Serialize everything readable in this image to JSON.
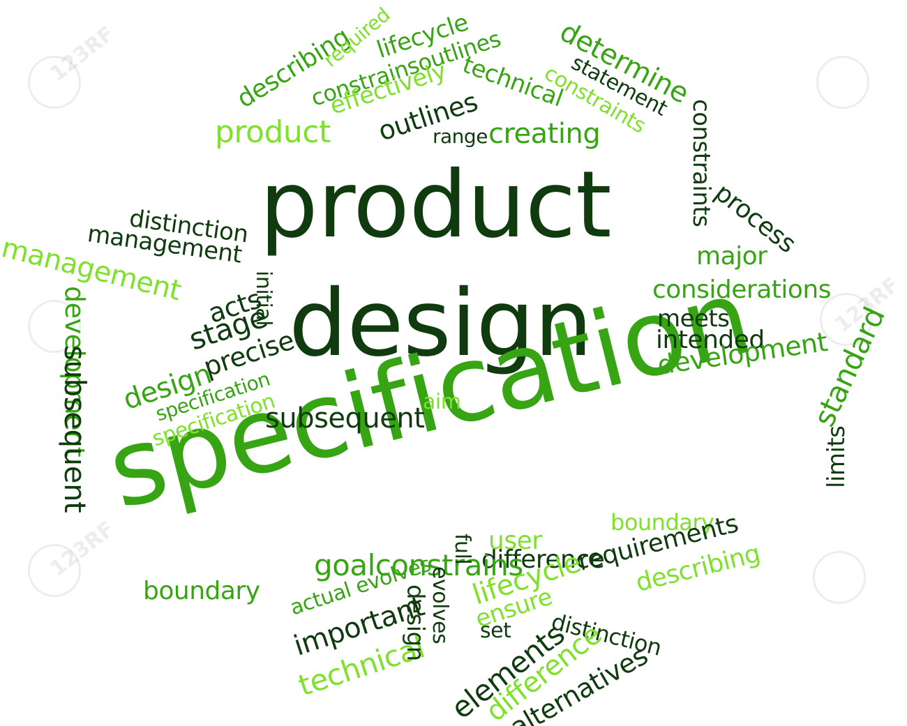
{
  "title_words": {
    "line1": "product",
    "line2": "design",
    "line3": "specification"
  },
  "words": {
    "w1": "describing",
    "w2": "required",
    "w3": "lifecycle",
    "w4": "constrainsoutlines",
    "w5": "effectively",
    "w6": "technical",
    "w7": "outlines",
    "w8": "product",
    "w9": "range",
    "w10": "creating",
    "w11": "determine",
    "w12": "statement",
    "w13": "constraints",
    "w14": "constraints",
    "w15": "process",
    "w16": "major",
    "w17": "considerations",
    "w18": "meets",
    "w19": "intended",
    "w20": "development",
    "w21": "standard",
    "w22": "limits",
    "w23": "distinction",
    "w24": "management",
    "w25": "management",
    "w26": "acts",
    "w27": "stage",
    "w28": "initial",
    "w29": "precise",
    "w30": "design",
    "w31": "specification",
    "w32": "specification",
    "w33": "subsequent",
    "w34": "aim",
    "w35": "development",
    "w36": "subsequent",
    "w37": "boundary",
    "w38": "user",
    "w39": "difference",
    "w40": "requirements",
    "w41": "describing",
    "w42": "boundary",
    "w43": "goalconstrains",
    "w44": "full",
    "w45": "actual evolves",
    "w46": "important",
    "w47": "technical",
    "w48": "evolves",
    "w49": "lifecycle",
    "w50": "design",
    "w51": "ensure",
    "w52": "set",
    "w53": "distinction",
    "w54": "elements",
    "w55": "difference",
    "w56": "alternatives"
  },
  "colors": {
    "dark": "#0f3b0f",
    "medium": "#37a414",
    "light": "#7fe12b"
  },
  "watermark": {
    "text": "123RF"
  }
}
